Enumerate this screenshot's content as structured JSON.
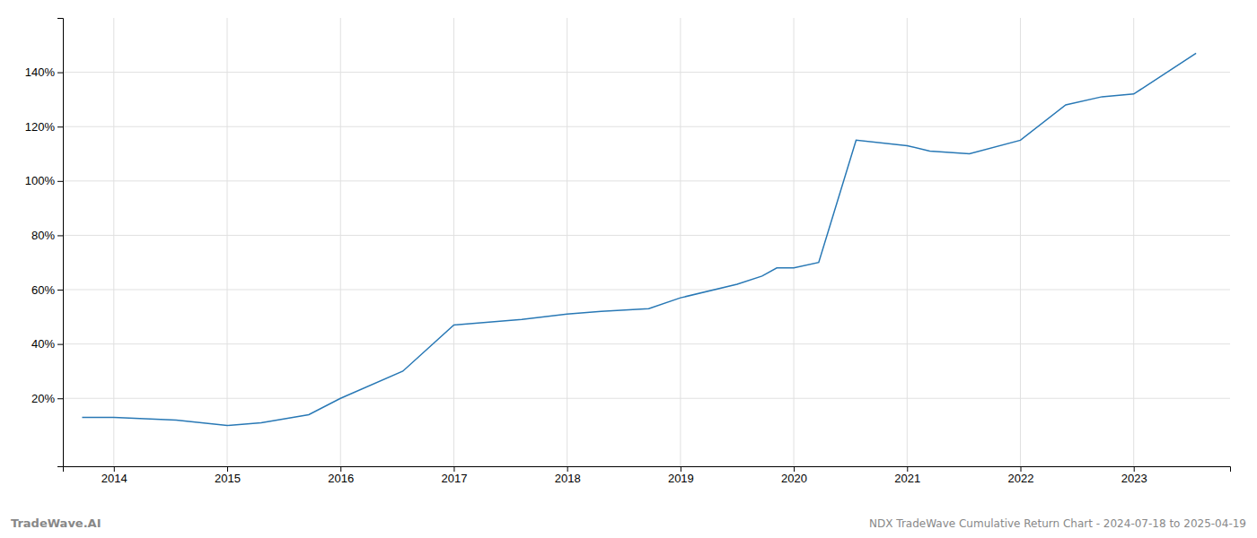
{
  "chart_data": {
    "type": "line",
    "title": "NDX TradeWave Cumulative Return Chart - 2024-07-18 to 2025-04-19",
    "annotations": [
      "TradeWave.AI"
    ],
    "color": "#2878b5",
    "x": [
      2013.72,
      2014.0,
      2014.55,
      2015.0,
      2015.3,
      2015.72,
      2016.0,
      2016.55,
      2017.0,
      2017.6,
      2018.0,
      2018.3,
      2018.72,
      2019.0,
      2019.5,
      2019.72,
      2019.85,
      2020.0,
      2020.22,
      2020.55,
      2021.0,
      2021.2,
      2021.55,
      2022.0,
      2022.4,
      2022.72,
      2023.0,
      2023.55
    ],
    "values": [
      13,
      13,
      12,
      10,
      11,
      14,
      20,
      30,
      47,
      49,
      51,
      52,
      53,
      57,
      62,
      65,
      68,
      68,
      70,
      115,
      113,
      111,
      110,
      115,
      128,
      131,
      132,
      147
    ],
    "xlim": [
      2013.55,
      2023.85
    ],
    "xticks": [
      2014,
      2015,
      2016,
      2017,
      2018,
      2019,
      2020,
      2021,
      2022,
      2023
    ],
    "ylim": [
      -5,
      160
    ],
    "yticks": [
      {
        "value": 20,
        "label": "20%"
      },
      {
        "value": 40,
        "label": "40%"
      },
      {
        "value": 60,
        "label": "60%"
      },
      {
        "value": 80,
        "label": "80%"
      },
      {
        "value": 100,
        "label": "100%"
      },
      {
        "value": 120,
        "label": "120%"
      },
      {
        "value": 140,
        "label": "140%"
      }
    ],
    "grid": true
  }
}
